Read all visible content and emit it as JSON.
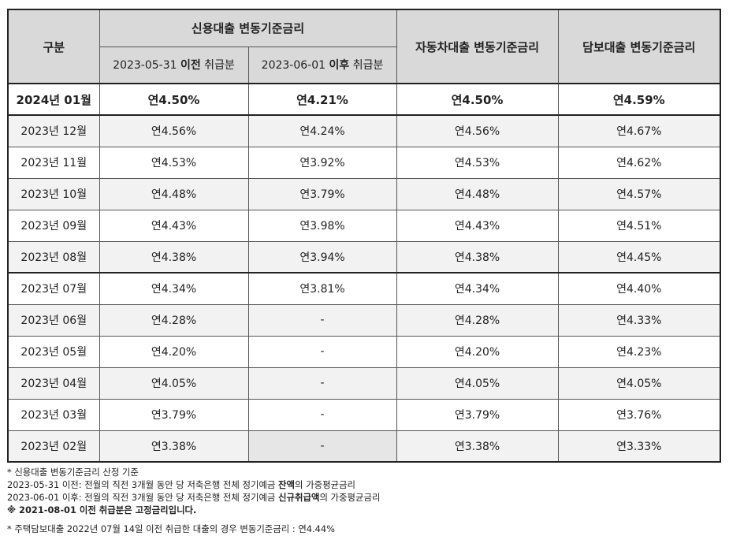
{
  "header": {
    "category": "구분",
    "credit_group": "신용대출 변동기준금리",
    "credit_before_prefix": "2023-05-31 ",
    "credit_before_bold": "이전",
    "credit_before_suffix": " 취급분",
    "credit_after_prefix": "2023-06-01 ",
    "credit_after_bold": "이후",
    "credit_after_suffix": " 취급분",
    "auto": "자동차대출 변동기준금리",
    "mortgage": "담보대출 변동기준금리"
  },
  "rows": [
    {
      "month": "2024년 01월",
      "before": "연4.50%",
      "after": "연4.21%",
      "auto": "연4.50%",
      "mortgage": "연4.59%"
    },
    {
      "month": "2023년 12월",
      "before": "연4.56%",
      "after": "연4.24%",
      "auto": "연4.56%",
      "mortgage": "연4.67%"
    },
    {
      "month": "2023년 11월",
      "before": "연4.53%",
      "after": "연3.92%",
      "auto": "연4.53%",
      "mortgage": "연4.62%"
    },
    {
      "month": "2023년 10월",
      "before": "연4.48%",
      "after": "연3.79%",
      "auto": "연4.48%",
      "mortgage": "연4.57%"
    },
    {
      "month": "2023년 09월",
      "before": "연4.43%",
      "after": "연3.98%",
      "auto": "연4.43%",
      "mortgage": "연4.51%"
    },
    {
      "month": "2023년 08월",
      "before": "연4.38%",
      "after": "연3.94%",
      "auto": "연4.38%",
      "mortgage": "연4.45%"
    },
    {
      "month": "2023년 07월",
      "before": "연4.34%",
      "after": "연3.81%",
      "auto": "연4.34%",
      "mortgage": "연4.40%"
    },
    {
      "month": "2023년 06월",
      "before": "연4.28%",
      "after": "-",
      "auto": "연4.28%",
      "mortgage": "연4.33%"
    },
    {
      "month": "2023년 05월",
      "before": "연4.20%",
      "after": "-",
      "auto": "연4.20%",
      "mortgage": "연4.23%"
    },
    {
      "month": "2023년 04월",
      "before": "연4.05%",
      "after": "-",
      "auto": "연4.05%",
      "mortgage": "연4.05%"
    },
    {
      "month": "2023년 03월",
      "before": "연3.79%",
      "after": "-",
      "auto": "연3.79%",
      "mortgage": "연3.76%"
    },
    {
      "month": "2023년 02월",
      "before": "연3.38%",
      "after": "-",
      "auto": "연3.38%",
      "mortgage": "연3.33%"
    }
  ],
  "notes": {
    "line1": "* 신용대출 변동기준금리 산정 기준",
    "line2_prefix": "2023-05-31 이전: 전월의 직전 3개월 동안 당 저축은행 전체 정기예금 ",
    "line2_bold": "잔액",
    "line2_suffix": "의 가중평균금리",
    "line3_prefix": "2023-06-01 이후: 전월의 직전 3개월 동안 당 저축은행 전체 정기예금 ",
    "line3_bold": "신규취급액",
    "line3_suffix": "의 가중평균금리",
    "line4": "※ 2021-08-01 이전 취급분은 고정금리입니다.",
    "line5": "* 주택담보대출 2022년 07월 14일 이전 취급한 대출의 경우 변동기준금리 : 연4.44%"
  }
}
